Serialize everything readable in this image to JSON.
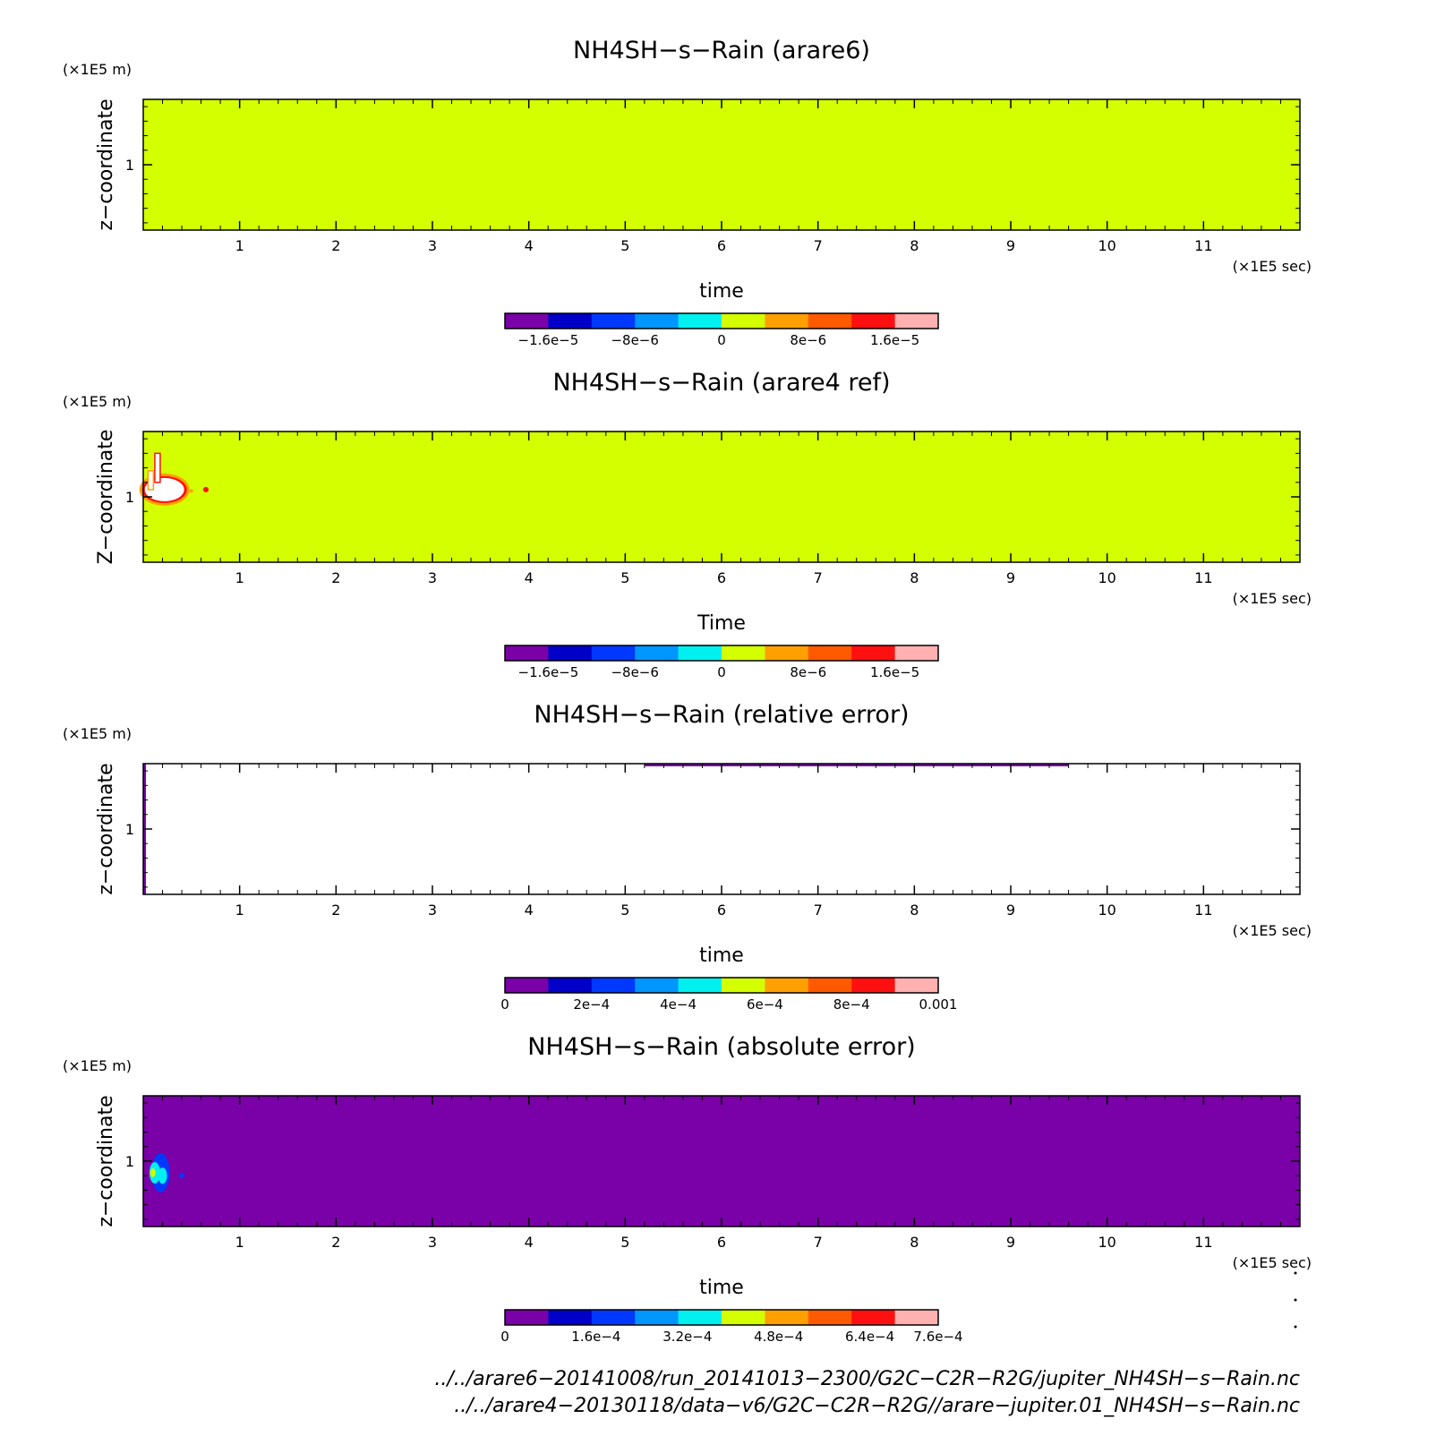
{
  "colors": {
    "levels": [
      "#7a00a8",
      "#0000c8",
      "#0038ff",
      "#0096ff",
      "#00f0f0",
      "#d4ff00",
      "#ffa000",
      "#ff5a00",
      "#ff1010",
      "#ffb0b0"
    ],
    "missing": "#ffffff"
  },
  "chart_data": [
    {
      "type": "heatmap",
      "title": "NH4SH−s−Rain (arare6)",
      "xlabel": "time",
      "ylabel": "z−coordinate",
      "x_unit": "(×1E5 sec)",
      "y_unit": "(×1E5 m)",
      "xlim": [
        0,
        12
      ],
      "ylim": [
        0.55,
        1.45
      ],
      "x_ticks": [
        "1",
        "2",
        "3",
        "4",
        "5",
        "6",
        "7",
        "8",
        "9",
        "10",
        "11"
      ],
      "y_ticks": [
        "1"
      ],
      "field": "uniform value 0 (level 6) over the whole domain",
      "colorbar": {
        "range": [
          -2e-05,
          2e-05
        ],
        "labels": [
          {
            "text": "−1.6e−5",
            "value": -1.6e-05
          },
          {
            "text": "−8e−6",
            "value": -8e-06
          },
          {
            "text": "0",
            "value": 0
          },
          {
            "text": "8e−6",
            "value": 8e-06
          },
          {
            "text": "1.6e−5",
            "value": 1.6e-05
          }
        ]
      }
    },
    {
      "type": "heatmap",
      "title": "NH4SH−s−Rain (arare4 ref)",
      "xlabel": "Time",
      "ylabel": "Z−coordinate",
      "x_unit": "(×1E5 sec)",
      "y_unit": "(×1E5 m)",
      "xlim": [
        0,
        12
      ],
      "ylim": [
        0.55,
        1.45
      ],
      "x_ticks": [
        "1",
        "2",
        "3",
        "4",
        "5",
        "6",
        "7",
        "8",
        "9",
        "10",
        "11"
      ],
      "y_ticks": [
        "1"
      ],
      "field": "value 0 (level 6) almost everywhere; values above 2e−5 (white) with red/orange rim near time 0.05–0.45, z 0.9–1.25",
      "colorbar": {
        "range": [
          -2e-05,
          2e-05
        ],
        "labels": [
          {
            "text": "−1.6e−5",
            "value": -1.6e-05
          },
          {
            "text": "−8e−6",
            "value": -8e-06
          },
          {
            "text": "0",
            "value": 0
          },
          {
            "text": "8e−6",
            "value": 8e-06
          },
          {
            "text": "1.6e−5",
            "value": 1.6e-05
          }
        ]
      }
    },
    {
      "type": "heatmap",
      "title": "NH4SH−s−Rain (relative error)",
      "xlabel": "time",
      "ylabel": "z−coordinate",
      "x_unit": "(×1E5 sec)",
      "y_unit": "(×1E5 m)",
      "xlim": [
        0,
        12
      ],
      "ylim": [
        0.55,
        1.45
      ],
      "x_ticks": [
        "1",
        "2",
        "3",
        "4",
        "5",
        "6",
        "7",
        "8",
        "9",
        "10",
        "11"
      ],
      "y_ticks": [
        "1"
      ],
      "field": "mostly undefined (white); thin purple (0) strip along top edge from time 5.2 to 9.6 and along left edge",
      "colorbar": {
        "range": [
          0,
          0.001
        ],
        "labels": [
          {
            "text": "0",
            "value": 0
          },
          {
            "text": "2e−4",
            "value": 0.0002
          },
          {
            "text": "4e−4",
            "value": 0.0004
          },
          {
            "text": "6e−4",
            "value": 0.0006
          },
          {
            "text": "8e−4",
            "value": 0.0008
          },
          {
            "text": "0.001",
            "value": 0.001
          }
        ]
      }
    },
    {
      "type": "heatmap",
      "title": "NH4SH−s−Rain (absolute error)",
      "xlabel": "time",
      "ylabel": "z−coordinate",
      "x_unit": "(×1E5 sec)",
      "y_unit": "(×1E5 m)",
      "xlim": [
        0,
        12
      ],
      "ylim": [
        0.55,
        1.45
      ],
      "x_ticks": [
        "1",
        "2",
        "3",
        "4",
        "5",
        "6",
        "7",
        "8",
        "9",
        "10",
        "11"
      ],
      "y_ticks": [
        "1"
      ],
      "field": "value 0 (purple) almost everywhere; small blue/cyan/green patch near time 0.05–0.45, z 0.75–1.05",
      "colorbar": {
        "range": [
          0,
          0.00076
        ],
        "labels": [
          {
            "text": "0",
            "value": 0
          },
          {
            "text": "1.6e−4",
            "value": 0.00016
          },
          {
            "text": "3.2e−4",
            "value": 0.00032
          },
          {
            "text": "4.8e−4",
            "value": 0.00048
          },
          {
            "text": "6.4e−4",
            "value": 0.00064
          },
          {
            "text": "7.6e−4",
            "value": 0.00076
          }
        ]
      }
    }
  ],
  "footer": {
    "line1": "../../arare6−20141008/run_20141013−2300/G2C−C2R−R2G/jupiter_NH4SH−s−Rain.nc",
    "line2": "../../arare4−20130118/data−v6/G2C−C2R−R2G//arare−jupiter.01_NH4SH−s−Rain.nc"
  }
}
